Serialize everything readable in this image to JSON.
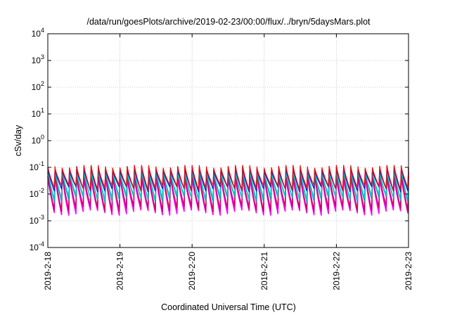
{
  "chart_data": {
    "type": "line",
    "title": "/data/run/goesPlots/archive/2019-02-23/00:00/flux/../bryn/5daysMars.plot",
    "xlabel": "Coordinated Universal Time (UTC)",
    "ylabel": "cSv/day",
    "x_ticks": [
      "2019-2-18",
      "2019-2-19",
      "2019-2-20",
      "2019-2-21",
      "2019-2-22",
      "2019-2-23"
    ],
    "y_ticks": [
      {
        "mant": "10",
        "exp": "-4"
      },
      {
        "mant": "10",
        "exp": "-3"
      },
      {
        "mant": "10",
        "exp": "-2"
      },
      {
        "mant": "10",
        "exp": "-1"
      },
      {
        "mant": "10",
        "exp": "0"
      },
      {
        "mant": "10",
        "exp": "1"
      },
      {
        "mant": "10",
        "exp": "2"
      },
      {
        "mant": "10",
        "exp": "3"
      },
      {
        "mant": "10",
        "exp": "4"
      }
    ],
    "x_range": [
      "2019-02-18",
      "2019-02-23"
    ],
    "ylim": [
      0.0001,
      10000
    ],
    "yscale": "log",
    "grid": true,
    "series_colors": [
      "#ff00ff",
      "#cc0066",
      "#00aaaa",
      "#00cccc",
      "#1122cc",
      "#dd1111"
    ],
    "series": [
      {
        "color": "#ff00ff",
        "cycles_per_day": 10,
        "peak": 0.055,
        "trough": 0.0016
      },
      {
        "color": "#cc0066",
        "cycles_per_day": 10,
        "peak": 0.07,
        "trough": 0.0022
      },
      {
        "color": "#00aaaa",
        "cycles_per_day": 10,
        "peak": 0.085,
        "trough": 0.005
      },
      {
        "color": "#00cccc",
        "cycles_per_day": 10,
        "peak": 0.09,
        "trough": 0.006
      },
      {
        "color": "#1122cc",
        "cycles_per_day": 10,
        "peak": 0.1,
        "trough": 0.012
      },
      {
        "color": "#dd1111",
        "cycles_per_day": 10,
        "peak": 0.12,
        "trough": 0.014
      }
    ]
  }
}
